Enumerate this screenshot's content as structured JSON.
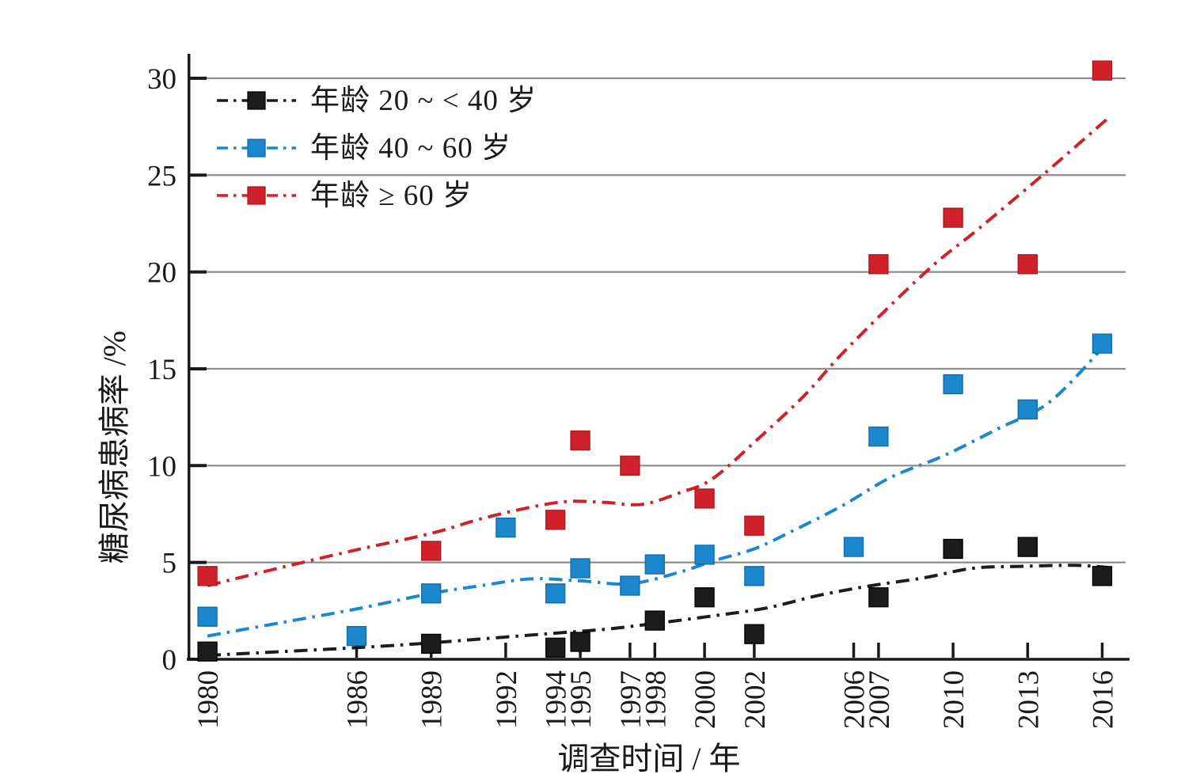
{
  "chart_data": {
    "type": "scatter",
    "title": "",
    "xlabel": "调查时间 / 年",
    "ylabel": "糖尿病患病率 /%",
    "x_ticks": [
      1980,
      1986,
      1989,
      1992,
      1994,
      1995,
      1997,
      1998,
      2000,
      2002,
      2006,
      2007,
      2010,
      2013,
      2016
    ],
    "y_ticks": [
      0,
      5,
      10,
      15,
      20,
      25,
      30
    ],
    "xlim": [
      1979.2,
      2017.1
    ],
    "ylim": [
      0,
      30
    ],
    "grid": "horizontal-gridlines-at-y-ticks",
    "grid_color": "#8c8c8c",
    "legend_position": "top-left",
    "marker": "square",
    "line_style": "dash-dot-smoothed-trend",
    "series": [
      {
        "name": "年龄 20 ~ < 40 岁",
        "color": "#1c1c1c",
        "edge_color": "#000000",
        "points": [
          [
            1980,
            0.4
          ],
          [
            1989,
            0.8
          ],
          [
            1994,
            0.6
          ],
          [
            1995,
            0.9
          ],
          [
            1998,
            2.0
          ],
          [
            2000,
            3.2
          ],
          [
            2002,
            1.3
          ],
          [
            2007,
            3.2
          ],
          [
            2010,
            5.7
          ],
          [
            2013,
            5.8
          ],
          [
            2016,
            4.3
          ]
        ],
        "trend": [
          [
            1980,
            0.2
          ],
          [
            1986,
            0.6
          ],
          [
            1989,
            0.85
          ],
          [
            1992,
            1.15
          ],
          [
            1994,
            1.35
          ],
          [
            1996,
            1.55
          ],
          [
            1998,
            1.85
          ],
          [
            2000.4,
            2.25
          ],
          [
            2002.5,
            2.65
          ],
          [
            2004.6,
            3.3
          ],
          [
            2006.7,
            3.8
          ],
          [
            2008.8,
            4.2
          ],
          [
            2010.8,
            4.7
          ],
          [
            2012.8,
            4.8
          ],
          [
            2014.9,
            4.85
          ],
          [
            2016.2,
            4.75
          ]
        ]
      },
      {
        "name": "年龄 40 ~ 60 岁",
        "color": "#1b87cd",
        "edge_color": "#1068a8",
        "points": [
          [
            1980,
            2.2
          ],
          [
            1986,
            1.2
          ],
          [
            1989,
            3.4
          ],
          [
            1992,
            6.8
          ],
          [
            1994,
            3.4
          ],
          [
            1995,
            4.7
          ],
          [
            1997,
            3.8
          ],
          [
            1998,
            4.9
          ],
          [
            2000,
            5.4
          ],
          [
            2002,
            4.3
          ],
          [
            2006,
            5.8
          ],
          [
            2007,
            11.5
          ],
          [
            2010,
            14.2
          ],
          [
            2013,
            12.9
          ],
          [
            2016,
            16.3
          ]
        ],
        "trend": [
          [
            1980,
            1.2
          ],
          [
            1983,
            1.9
          ],
          [
            1986,
            2.6
          ],
          [
            1989,
            3.4
          ],
          [
            1991,
            3.8
          ],
          [
            1993,
            4.15
          ],
          [
            1995,
            4.05
          ],
          [
            1997,
            3.9
          ],
          [
            1999,
            4.5
          ],
          [
            2000.4,
            5.1
          ],
          [
            2002,
            5.7
          ],
          [
            2003.5,
            6.6
          ],
          [
            2005.5,
            7.9
          ],
          [
            2007.5,
            9.4
          ],
          [
            2009.6,
            10.5
          ],
          [
            2011.8,
            11.9
          ],
          [
            2013.9,
            13.3
          ],
          [
            2016.1,
            16.2
          ]
        ]
      },
      {
        "name": "年龄 ≥ 60 岁",
        "color": "#d0202a",
        "edge_color": "#a8161f",
        "points": [
          [
            1980,
            4.3
          ],
          [
            1989,
            5.6
          ],
          [
            1994,
            7.2
          ],
          [
            1995,
            11.3
          ],
          [
            1997,
            10.0
          ],
          [
            2000,
            8.3
          ],
          [
            2002,
            6.9
          ],
          [
            2007,
            20.4
          ],
          [
            2010,
            22.8
          ],
          [
            2013,
            20.4
          ],
          [
            2016,
            30.4
          ]
        ],
        "trend": [
          [
            1980,
            3.8
          ],
          [
            1983,
            4.75
          ],
          [
            1986,
            5.65
          ],
          [
            1989,
            6.5
          ],
          [
            1991,
            7.25
          ],
          [
            1993,
            7.85
          ],
          [
            1994.5,
            8.15
          ],
          [
            1996,
            8.1
          ],
          [
            1997.5,
            8.0
          ],
          [
            1999,
            8.6
          ],
          [
            2000.3,
            9.3
          ],
          [
            2002,
            11.2
          ],
          [
            2004,
            13.6
          ],
          [
            2005.7,
            16.0
          ],
          [
            2008.9,
            20.0
          ],
          [
            2011,
            22.2
          ],
          [
            2013.6,
            25.0
          ],
          [
            2016.2,
            27.9
          ]
        ]
      }
    ]
  }
}
